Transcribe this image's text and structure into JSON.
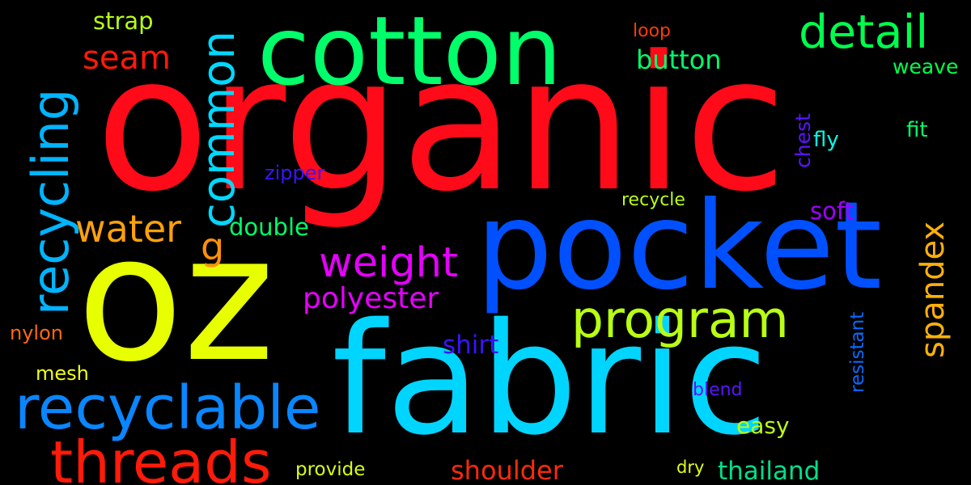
{
  "words": {
    "organic": {
      "text": "organic",
      "color": "#ff0a18"
    },
    "oz": {
      "text": "oz",
      "color": "#e7ff00"
    },
    "fabric": {
      "text": "fabric",
      "color": "#00d5ff"
    },
    "pocket": {
      "text": "pocket",
      "color": "#0050ff"
    },
    "cotton": {
      "text": "cotton",
      "color": "#00ff6a"
    },
    "recyclable": {
      "text": "recyclable",
      "color": "#0a86ff"
    },
    "threads": {
      "text": "threads",
      "color": "#ff1a0a"
    },
    "program": {
      "text": "program",
      "color": "#b8ff14"
    },
    "detail": {
      "text": "detail",
      "color": "#00ff4c"
    },
    "weight": {
      "text": "weight",
      "color": "#e600ff"
    },
    "water": {
      "text": "water",
      "color": "#ffa10a"
    },
    "seam": {
      "text": "seam",
      "color": "#ff1a0a"
    },
    "polyester": {
      "text": "polyester",
      "color": "#e600ff"
    },
    "shoulder": {
      "text": "shoulder",
      "color": "#ff2a0a"
    },
    "thailand": {
      "text": "thailand",
      "color": "#00e08a"
    },
    "button": {
      "text": "button",
      "color": "#00ff6a"
    },
    "shirt": {
      "text": "shirt",
      "color": "#3a14ff"
    },
    "double": {
      "text": "double",
      "color": "#00ff6a"
    },
    "strap": {
      "text": "strap",
      "color": "#b8ff14"
    },
    "soft": {
      "text": "soft",
      "color": "#a000ff"
    },
    "easy": {
      "text": "easy",
      "color": "#b8ff14"
    },
    "nylon": {
      "text": "nylon",
      "color": "#ff6a0a"
    },
    "weave": {
      "text": "weave",
      "color": "#00ff4c"
    },
    "fit": {
      "text": "fit",
      "color": "#00ff6a"
    },
    "fly": {
      "text": "fly",
      "color": "#00ffe6"
    },
    "zipper": {
      "text": "zipper",
      "color": "#3a14ff"
    },
    "mesh": {
      "text": "mesh",
      "color": "#f0ff14"
    },
    "provide": {
      "text": "provide",
      "color": "#d8ff14"
    },
    "loop": {
      "text": "loop",
      "color": "#ff3a0a"
    },
    "recycle": {
      "text": "recycle",
      "color": "#b8ff14"
    },
    "blend": {
      "text": "blend",
      "color": "#5a14ff"
    },
    "dry": {
      "text": "dry",
      "color": "#e0ff14"
    },
    "g": {
      "text": "g",
      "color": "#ff900a"
    },
    "recycling": {
      "text": "recycling",
      "color": "#00b4ff"
    },
    "common": {
      "text": "common",
      "color": "#00d8ff"
    },
    "spandex": {
      "text": "spandex",
      "color": "#ffb00a"
    },
    "resistant": {
      "text": "resistant",
      "color": "#0a6aff"
    },
    "chest": {
      "text": "chest",
      "color": "#5a14ff"
    }
  }
}
